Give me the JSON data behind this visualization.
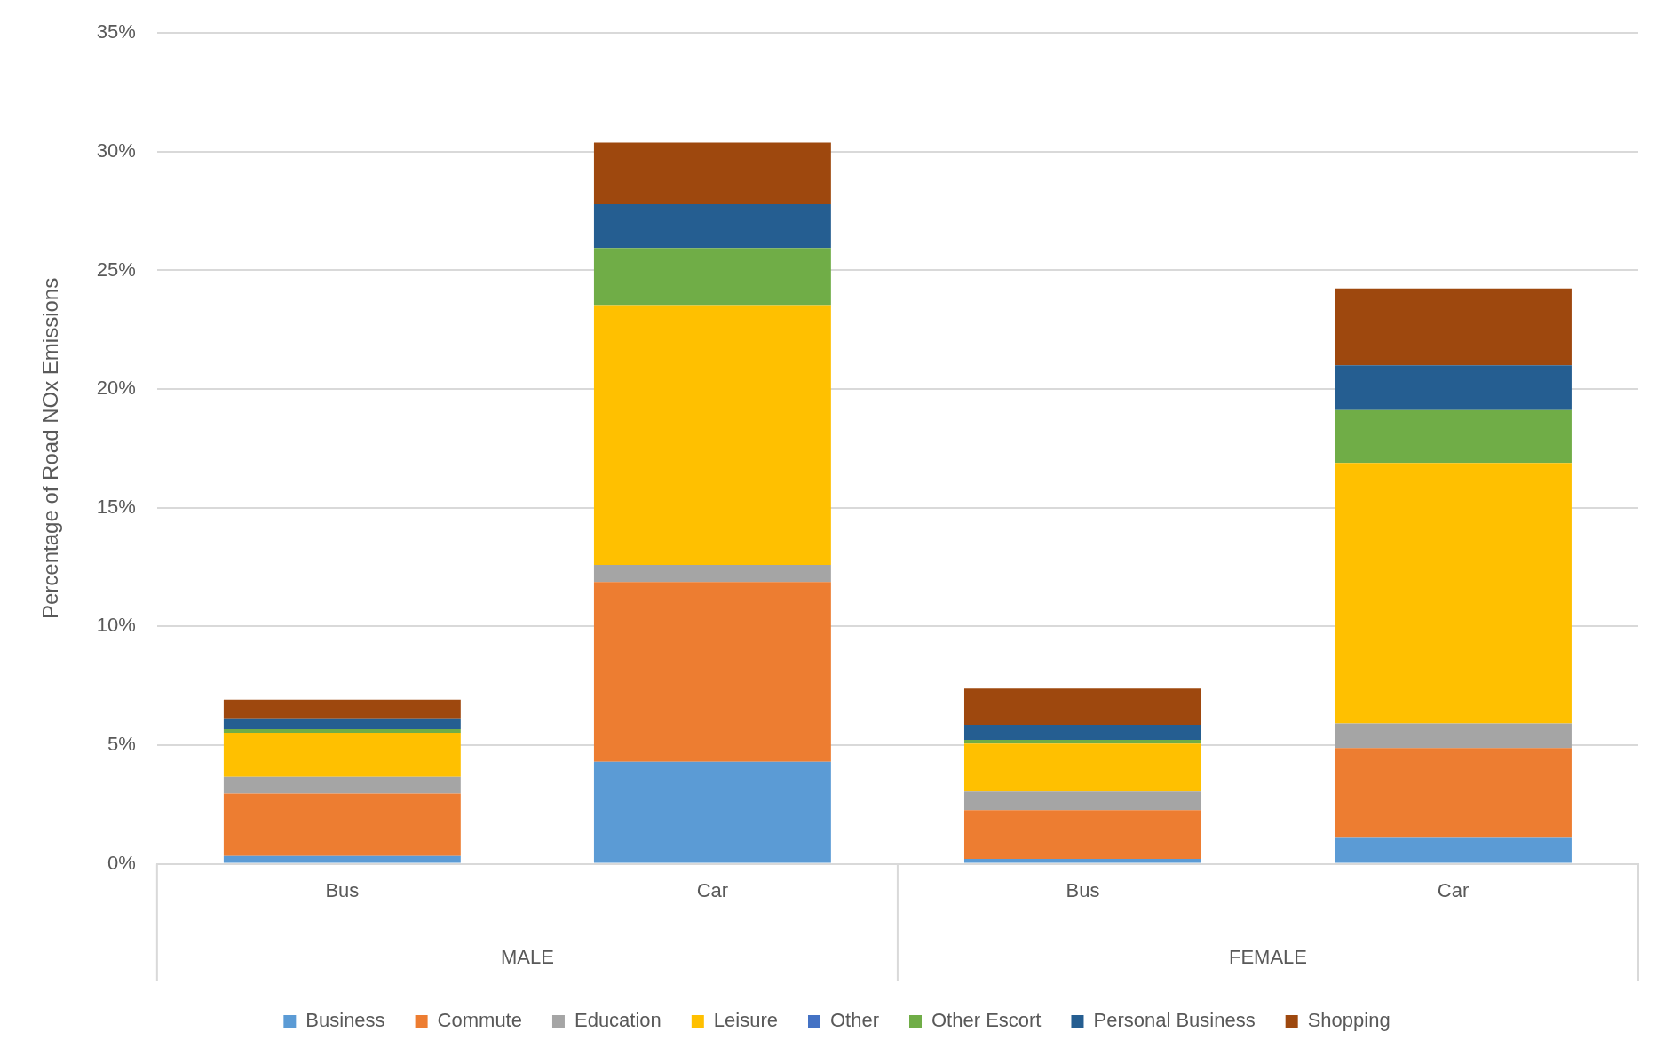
{
  "chart_data": {
    "type": "bar",
    "stacked": true,
    "ylabel": "Percentage of Road NOx Emissions",
    "categories": [
      "Bus",
      "Car",
      "Bus",
      "Car"
    ],
    "annotations": [
      "MALE",
      "FEMALE"
    ],
    "series": [
      {
        "name": "Business",
        "color": "#5b9bd5",
        "values": [
          0.33,
          4.3,
          0.21,
          1.13
        ]
      },
      {
        "name": "Commute",
        "color": "#ed7d31",
        "values": [
          2.63,
          7.57,
          2.05,
          3.75
        ]
      },
      {
        "name": "Education",
        "color": "#a5a5a5",
        "values": [
          0.7,
          0.72,
          0.78,
          1.04
        ]
      },
      {
        "name": "Leisure",
        "color": "#ffc000",
        "values": [
          1.86,
          10.95,
          2.02,
          10.97
        ]
      },
      {
        "name": "Other",
        "color": "#4472c4",
        "values": [
          0,
          0,
          0,
          0
        ]
      },
      {
        "name": "Other Escort",
        "color": "#70ad47",
        "values": [
          0.15,
          2.4,
          0.16,
          2.22
        ]
      },
      {
        "name": "Personal Business",
        "color": "#255e91",
        "values": [
          0.46,
          1.85,
          0.64,
          1.89
        ]
      },
      {
        "name": "Shopping",
        "color": "#9e480e",
        "values": [
          0.79,
          2.6,
          1.52,
          3.24
        ]
      }
    ],
    "ylim": [
      0,
      35
    ],
    "yticks": [
      {
        "value": 0,
        "label": "0%"
      },
      {
        "value": 5,
        "label": "5%"
      },
      {
        "value": 10,
        "label": "10%"
      },
      {
        "value": 15,
        "label": "15%"
      },
      {
        "value": 20,
        "label": "20%"
      },
      {
        "value": 25,
        "label": "25%"
      },
      {
        "value": 30,
        "label": "30%"
      },
      {
        "value": 35,
        "label": "35%"
      }
    ],
    "grid": "y",
    "legend": "bottom"
  }
}
